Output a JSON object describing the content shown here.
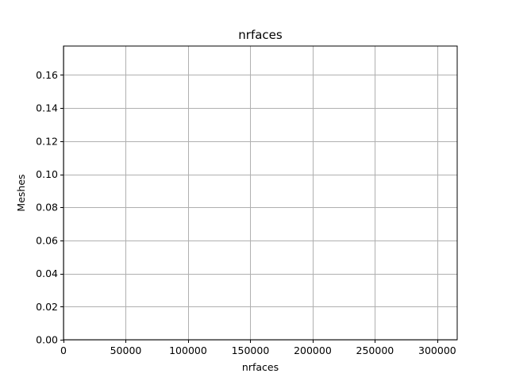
{
  "chart_data": {
    "type": "bar",
    "title": "nrfaces",
    "xlabel": "nrfaces",
    "ylabel": "Meshes",
    "xlim": [
      0,
      316000
    ],
    "ylim": [
      0,
      0.1775
    ],
    "xticks": [
      0,
      50000,
      100000,
      150000,
      200000,
      250000,
      300000
    ],
    "xtick_labels": [
      "0",
      "50000",
      "100000",
      "150000",
      "200000",
      "250000",
      "300000"
    ],
    "yticks": [
      0.0,
      0.02,
      0.04,
      0.06,
      0.08,
      0.1,
      0.12,
      0.14,
      0.16
    ],
    "ytick_labels": [
      "0.00",
      "0.02",
      "0.04",
      "0.06",
      "0.08",
      "0.10",
      "0.12",
      "0.14",
      "0.16"
    ],
    "grid": true,
    "series": []
  }
}
